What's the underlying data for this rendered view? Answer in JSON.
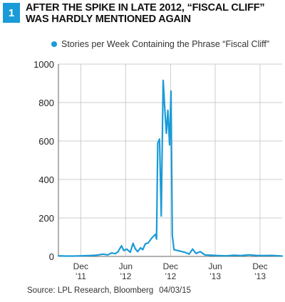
{
  "figure": {
    "number": "1",
    "title": "After the spike in late 2012, “Fiscal Cliff” was hardly mentioned again",
    "source": "Source: LPL Research, Bloomberg",
    "date": "04/03/15"
  },
  "chart_data": {
    "type": "line",
    "title": "",
    "xlabel": "",
    "ylabel": "",
    "ylim": [
      0,
      1000
    ],
    "yticks": [
      0,
      200,
      400,
      600,
      800,
      1000
    ],
    "xlim": [
      "2011-09-01",
      "2014-03-01"
    ],
    "xticks": [
      {
        "date": "2011-12-01",
        "month": "Dec",
        "year": "’11"
      },
      {
        "date": "2012-06-01",
        "month": "Jun",
        "year": "’12"
      },
      {
        "date": "2012-12-01",
        "month": "Dec",
        "year": "’12"
      },
      {
        "date": "2013-06-01",
        "month": "Jun",
        "year": "’13"
      },
      {
        "date": "2013-12-01",
        "month": "Dec",
        "year": "’13"
      }
    ],
    "grid": true,
    "legend": "top",
    "colors": {
      "series": "#1a9bd7",
      "grid": "#cccccc",
      "axis": "#666666"
    },
    "series": [
      {
        "name": "Stories per Week Containing the Phrase “Fiscal Cliff”",
        "points": [
          [
            "2011-09-01",
            3
          ],
          [
            "2011-10-01",
            2
          ],
          [
            "2011-11-01",
            2
          ],
          [
            "2011-12-01",
            3
          ],
          [
            "2012-01-01",
            4
          ],
          [
            "2012-02-01",
            6
          ],
          [
            "2012-03-01",
            12
          ],
          [
            "2012-03-20",
            8
          ],
          [
            "2012-04-05",
            18
          ],
          [
            "2012-04-20",
            14
          ],
          [
            "2012-05-01",
            25
          ],
          [
            "2012-05-15",
            55
          ],
          [
            "2012-05-25",
            30
          ],
          [
            "2012-06-05",
            38
          ],
          [
            "2012-06-20",
            22
          ],
          [
            "2012-07-01",
            68
          ],
          [
            "2012-07-10",
            40
          ],
          [
            "2012-07-20",
            25
          ],
          [
            "2012-08-01",
            45
          ],
          [
            "2012-08-10",
            35
          ],
          [
            "2012-08-20",
            65
          ],
          [
            "2012-09-01",
            70
          ],
          [
            "2012-09-15",
            95
          ],
          [
            "2012-10-01",
            115
          ],
          [
            "2012-10-05",
            90
          ],
          [
            "2012-10-10",
            590
          ],
          [
            "2012-10-17",
            610
          ],
          [
            "2012-10-24",
            210
          ],
          [
            "2012-11-01",
            915
          ],
          [
            "2012-11-08",
            760
          ],
          [
            "2012-11-14",
            640
          ],
          [
            "2012-11-20",
            760
          ],
          [
            "2012-11-27",
            580
          ],
          [
            "2012-12-03",
            860
          ],
          [
            "2012-12-08",
            110
          ],
          [
            "2012-12-15",
            35
          ],
          [
            "2013-01-01",
            30
          ],
          [
            "2013-02-01",
            20
          ],
          [
            "2013-02-15",
            12
          ],
          [
            "2013-03-01",
            38
          ],
          [
            "2013-03-15",
            15
          ],
          [
            "2013-04-01",
            25
          ],
          [
            "2013-04-20",
            8
          ],
          [
            "2013-05-15",
            6
          ],
          [
            "2013-06-15",
            4
          ],
          [
            "2013-07-15",
            3
          ],
          [
            "2013-08-15",
            6
          ],
          [
            "2013-09-15",
            4
          ],
          [
            "2013-10-15",
            8
          ],
          [
            "2013-11-15",
            5
          ],
          [
            "2013-12-15",
            4
          ],
          [
            "2014-01-15",
            5
          ],
          [
            "2014-02-15",
            3
          ],
          [
            "2014-03-01",
            2
          ]
        ]
      }
    ]
  }
}
